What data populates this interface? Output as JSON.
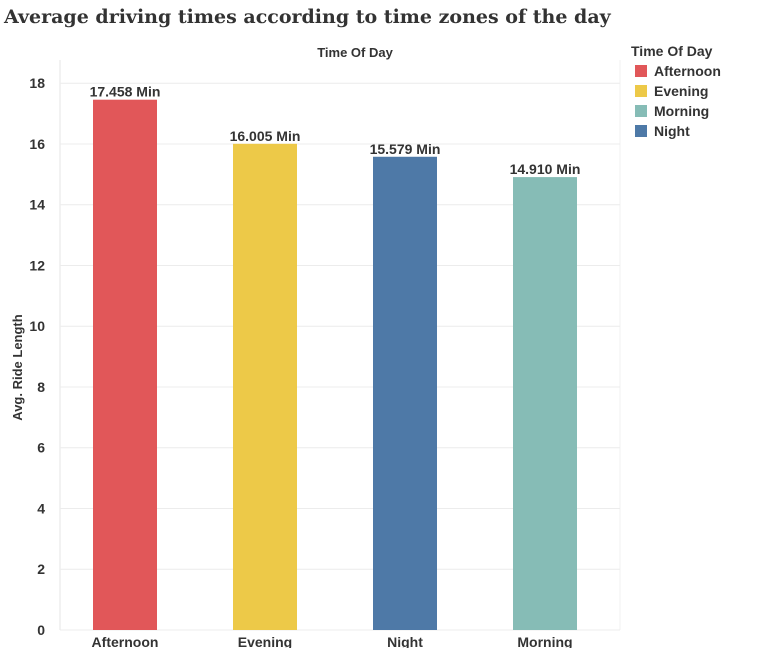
{
  "title": "Average driving times according to time zones of the day",
  "colors": {
    "Afternoon": "#e15759",
    "Evening": "#edc948",
    "Morning": "#86bcb6",
    "Night": "#4e79a7",
    "gridline": "#ececec",
    "text": "#333333"
  },
  "legend": {
    "title": "Time Of Day",
    "placement": "right",
    "items": [
      {
        "label": "Afternoon",
        "color": "#e15759"
      },
      {
        "label": "Evening",
        "color": "#edc948"
      },
      {
        "label": "Morning",
        "color": "#86bcb6"
      },
      {
        "label": "Night",
        "color": "#4e79a7"
      }
    ]
  },
  "chart_data": {
    "type": "bar",
    "title": "Average driving times according to time zones of the day",
    "column_header": "Time Of Day",
    "xlabel": "",
    "ylabel": "Avg. Ride Length",
    "ylim": [
      0,
      18.6
    ],
    "yticks": [
      0,
      2,
      4,
      6,
      8,
      10,
      12,
      14,
      16,
      18
    ],
    "grid": true,
    "categories": [
      "Afternoon",
      "Evening",
      "Night",
      "Morning"
    ],
    "values": [
      17.458,
      16.005,
      15.579,
      14.91
    ],
    "data_labels": [
      "17.458 Min",
      "16.005 Min",
      "15.579 Min",
      "14.910 Min"
    ],
    "bar_colors": [
      "#e15759",
      "#edc948",
      "#4e79a7",
      "#86bcb6"
    ]
  }
}
